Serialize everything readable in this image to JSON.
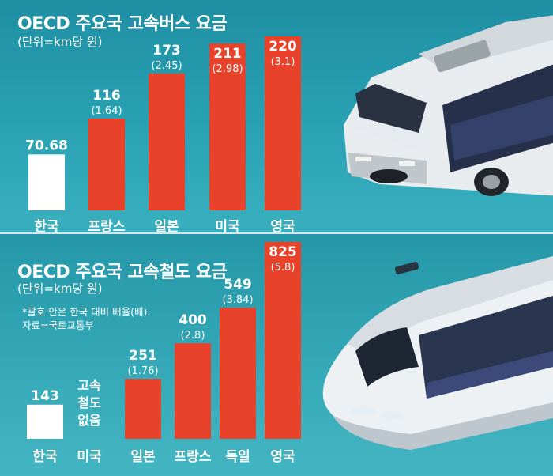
{
  "chart_data": [
    {
      "type": "bar",
      "title": "OECD 주요국 고속버스 요금",
      "subtitle": "(단위=km당 원)",
      "categories": [
        "한국",
        "프랑스",
        "일본",
        "미국",
        "영국"
      ],
      "values": [
        70.68,
        116,
        173,
        211,
        220
      ],
      "value_labels": [
        "70.68",
        "116",
        "173",
        "211",
        "220"
      ],
      "ratio_labels": [
        "",
        "(1.64)",
        "(2.45)",
        "(2.98)",
        "(3.1)"
      ],
      "colors": [
        "#ffffff",
        "#e8422a",
        "#e8422a",
        "#e8422a",
        "#e8422a"
      ],
      "grid": false
    },
    {
      "type": "bar",
      "title": "OECD 주요국 고속철도 요금",
      "subtitle": "(단위=km당 원)",
      "categories": [
        "한국",
        "미국",
        "일본",
        "프랑스",
        "독일",
        "영국"
      ],
      "values": [
        143,
        null,
        251,
        400,
        549,
        825
      ],
      "value_labels": [
        "143",
        "",
        "251",
        "400",
        "549",
        "825"
      ],
      "ratio_labels": [
        "",
        "",
        "(1.76)",
        "(2.8)",
        "(3.84)",
        "(5.8)"
      ],
      "missing_label": "고속\n철도\n없음",
      "colors": [
        "#ffffff",
        "#ffffff",
        "#e8422a",
        "#e8422a",
        "#e8422a",
        "#e8422a"
      ],
      "grid": false
    }
  ],
  "notes": [
    "*괄호 안은 한국 대비 배율(배).",
    "자료=국토교통부"
  ],
  "colors": {
    "background": "#2e9fb0",
    "accent": "#e8422a",
    "baseline_bar": "#ffffff"
  }
}
